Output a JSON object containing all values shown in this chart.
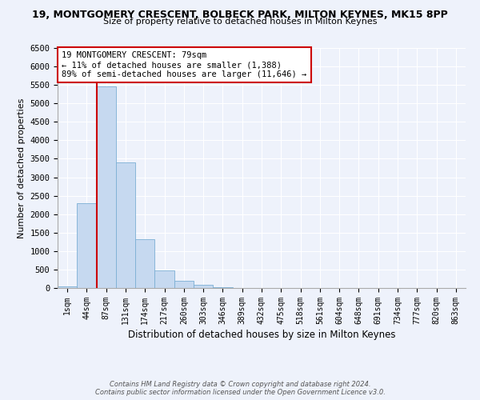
{
  "title": "19, MONTGOMERY CRESCENT, BOLBECK PARK, MILTON KEYNES, MK15 8PP",
  "subtitle": "Size of property relative to detached houses in Milton Keynes",
  "xlabel": "Distribution of detached houses by size in Milton Keynes",
  "ylabel": "Number of detached properties",
  "bin_labels": [
    "1sqm",
    "44sqm",
    "87sqm",
    "131sqm",
    "174sqm",
    "217sqm",
    "260sqm",
    "303sqm",
    "346sqm",
    "389sqm",
    "432sqm",
    "475sqm",
    "518sqm",
    "561sqm",
    "604sqm",
    "648sqm",
    "691sqm",
    "734sqm",
    "777sqm",
    "820sqm",
    "863sqm"
  ],
  "bar_heights": [
    50,
    2300,
    5450,
    3400,
    1320,
    480,
    185,
    80,
    25,
    5,
    2,
    0,
    0,
    0,
    0,
    0,
    0,
    0,
    0,
    0,
    0
  ],
  "bar_color": "#c6d9f0",
  "bar_edge_color": "#7bafd4",
  "property_line_x": 1.5,
  "property_line_color": "#cc0000",
  "annotation_line1": "19 MONTGOMERY CRESCENT: 79sqm",
  "annotation_line2": "← 11% of detached houses are smaller (1,388)",
  "annotation_line3": "89% of semi-detached houses are larger (11,646) →",
  "annotation_box_color": "#ffffff",
  "annotation_box_edge": "#cc0000",
  "ylim": [
    0,
    6500
  ],
  "yticks": [
    0,
    500,
    1000,
    1500,
    2000,
    2500,
    3000,
    3500,
    4000,
    4500,
    5000,
    5500,
    6000,
    6500
  ],
  "footer_line1": "Contains HM Land Registry data © Crown copyright and database right 2024.",
  "footer_line2": "Contains public sector information licensed under the Open Government Licence v3.0.",
  "bg_color": "#eef2fb"
}
